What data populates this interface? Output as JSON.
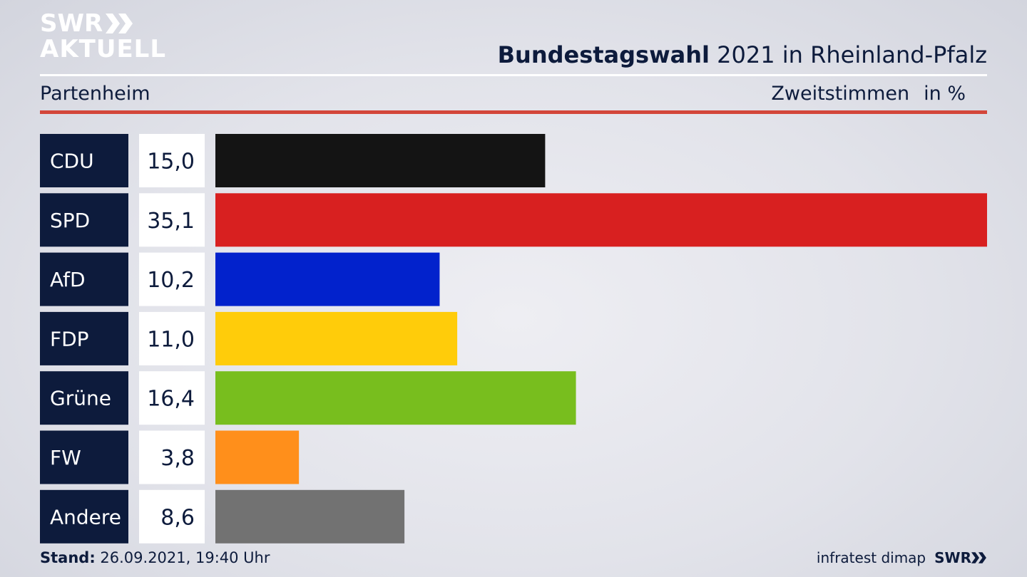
{
  "logo": {
    "line1": "SWR",
    "line2": "AKTUELL"
  },
  "header": {
    "title_bold": "Bundestagswahl",
    "title_rest": " 2021 in Rheinland-Pfalz",
    "location": "Partenheim",
    "metric": "Zweitstimmen",
    "unit": "in %"
  },
  "chart_data": {
    "type": "bar",
    "orientation": "horizontal",
    "categories": [
      "CDU",
      "SPD",
      "AfD",
      "FDP",
      "Grüne",
      "FW",
      "Andere"
    ],
    "values": [
      15.0,
      35.1,
      10.2,
      11.0,
      16.4,
      3.8,
      8.6
    ],
    "value_labels": [
      "15,0",
      "35,1",
      "10,2",
      "11,0",
      "16,4",
      "3,8",
      "8,6"
    ],
    "colors": [
      "#141414",
      "#d82020",
      "#0222cc",
      "#ffcc0a",
      "#78be1e",
      "#ff8f1b",
      "#727272"
    ],
    "title": "",
    "xlabel": "",
    "ylabel": "Zweitstimmen in %",
    "xlim": [
      0,
      35.1
    ]
  },
  "footer": {
    "stand_label": "Stand:",
    "stand_value": " 26.09.2021, 19:40 Uhr",
    "source": "infratest dimap",
    "brand": "SWR"
  }
}
